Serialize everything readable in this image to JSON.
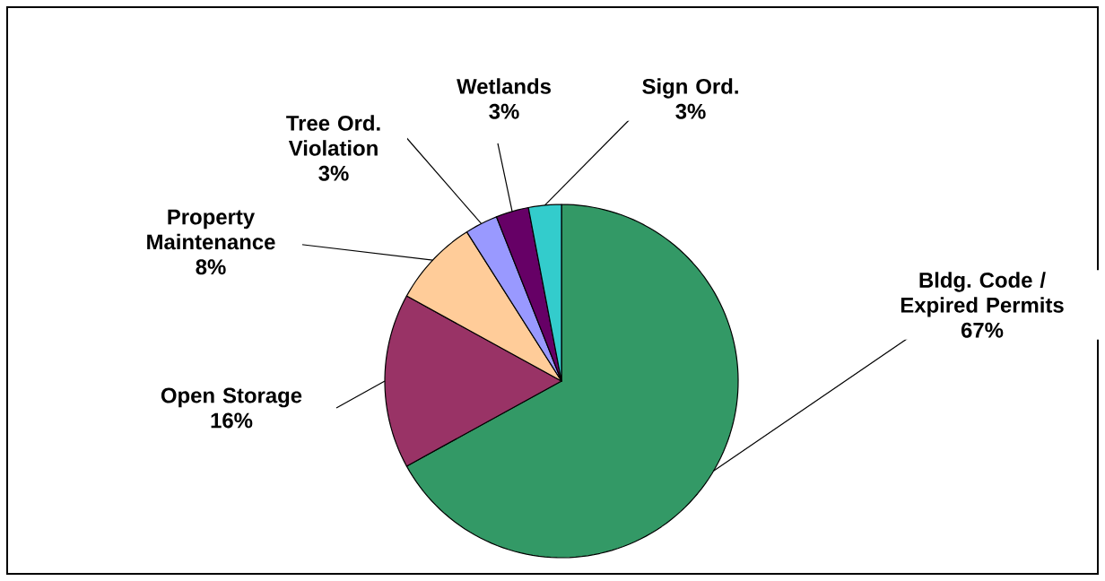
{
  "chart_data": {
    "type": "pie",
    "categories": [
      "Bldg. Code / Expired Permits",
      "Open Storage",
      "Property Maintenance",
      "Tree Ord. Violation",
      "Wetlands",
      "Sign Ord."
    ],
    "values": [
      67,
      16,
      8,
      3,
      3,
      3
    ],
    "colors": [
      "#339966",
      "#993366",
      "#ffcc99",
      "#9999ff",
      "#660066",
      "#33cccc"
    ],
    "value_labels": [
      "67%",
      "16%",
      "8%",
      "3%",
      "3%",
      "3%"
    ]
  }
}
